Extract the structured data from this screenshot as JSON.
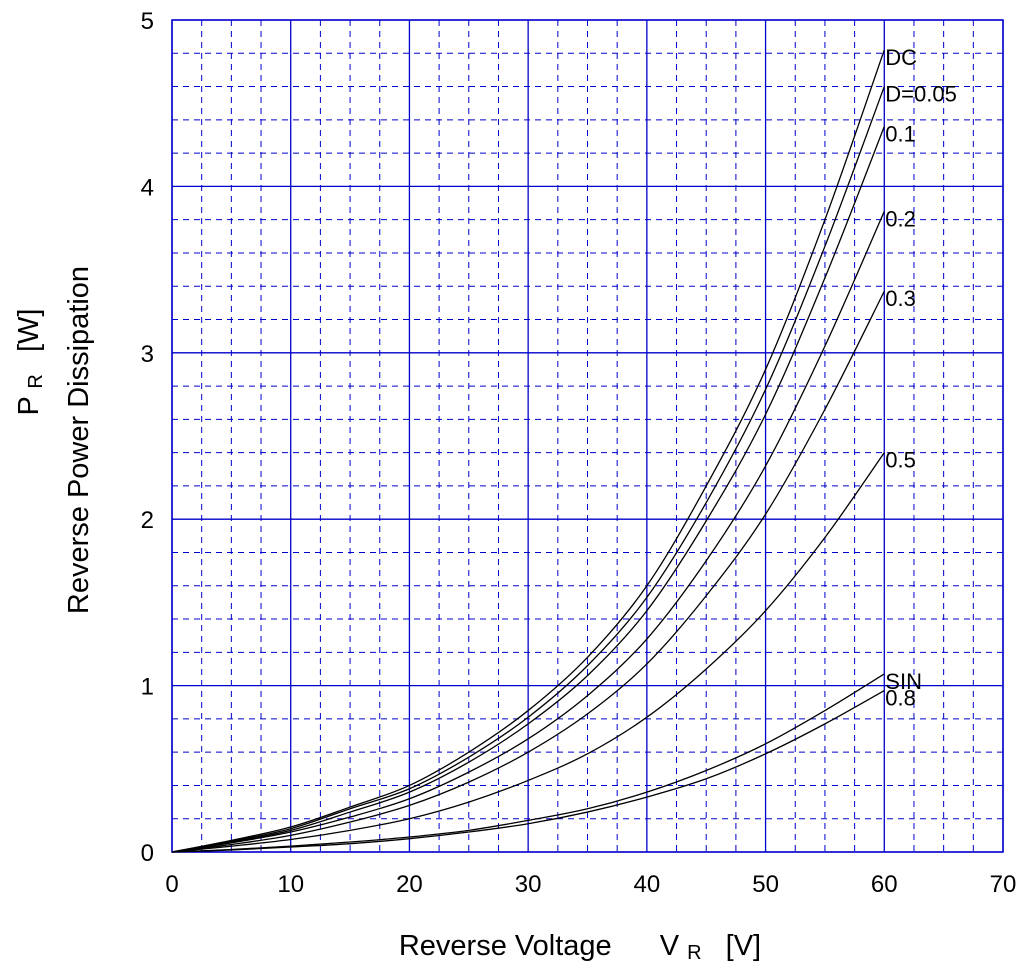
{
  "chart_data": {
    "type": "line",
    "title": "",
    "xlabel": {
      "main": "Reverse Voltage",
      "symbol": "V",
      "sub": "R",
      "unit": "[V]"
    },
    "ylabel": {
      "line1_symbol": "P",
      "line1_sub": "R",
      "line1_unit": "[W]",
      "line2": "Reverse Power Dissipation"
    },
    "xlim": [
      0,
      70
    ],
    "ylim": [
      0,
      5
    ],
    "x_major_ticks": [
      "0",
      "10",
      "20",
      "30",
      "40",
      "50",
      "60",
      "70"
    ],
    "y_major_ticks": [
      "0",
      "1",
      "2",
      "3",
      "4",
      "5"
    ],
    "x_minor_step": 2.5,
    "y_minor_step": 0.2,
    "grid": true,
    "grid_color": "#0000cc",
    "line_color": "#000000",
    "x": [
      0,
      5,
      10,
      15,
      20,
      25,
      30,
      35,
      40,
      45,
      50,
      55,
      60
    ],
    "series": [
      {
        "name": "DC",
        "values": [
          0,
          0.07,
          0.15,
          0.27,
          0.4,
          0.6,
          0.85,
          1.17,
          1.6,
          2.2,
          2.9,
          3.8,
          4.82
        ]
      },
      {
        "name": "D=0.05",
        "values": [
          0,
          0.065,
          0.14,
          0.26,
          0.38,
          0.57,
          0.81,
          1.12,
          1.53,
          2.1,
          2.78,
          3.64,
          4.6
        ]
      },
      {
        "name": "0.1",
        "values": [
          0,
          0.06,
          0.13,
          0.24,
          0.36,
          0.54,
          0.77,
          1.06,
          1.45,
          1.99,
          2.63,
          3.45,
          4.36
        ]
      },
      {
        "name": "0.2",
        "values": [
          0,
          0.055,
          0.12,
          0.21,
          0.32,
          0.48,
          0.68,
          0.94,
          1.28,
          1.75,
          2.32,
          3.04,
          3.85
        ]
      },
      {
        "name": "0.3",
        "values": [
          0,
          0.045,
          0.1,
          0.18,
          0.28,
          0.42,
          0.6,
          0.83,
          1.13,
          1.54,
          2.03,
          2.66,
          3.37
        ]
      },
      {
        "name": "0.5",
        "values": [
          0,
          0.035,
          0.075,
          0.13,
          0.2,
          0.3,
          0.43,
          0.59,
          0.81,
          1.1,
          1.45,
          1.89,
          2.4
        ]
      },
      {
        "name": "SIN",
        "values": [
          0,
          0.015,
          0.035,
          0.06,
          0.09,
          0.13,
          0.19,
          0.26,
          0.36,
          0.49,
          0.65,
          0.85,
          1.07
        ]
      },
      {
        "name": "0.8",
        "values": [
          0,
          0.012,
          0.03,
          0.05,
          0.08,
          0.12,
          0.17,
          0.24,
          0.33,
          0.44,
          0.59,
          0.77,
          0.97
        ]
      }
    ]
  }
}
